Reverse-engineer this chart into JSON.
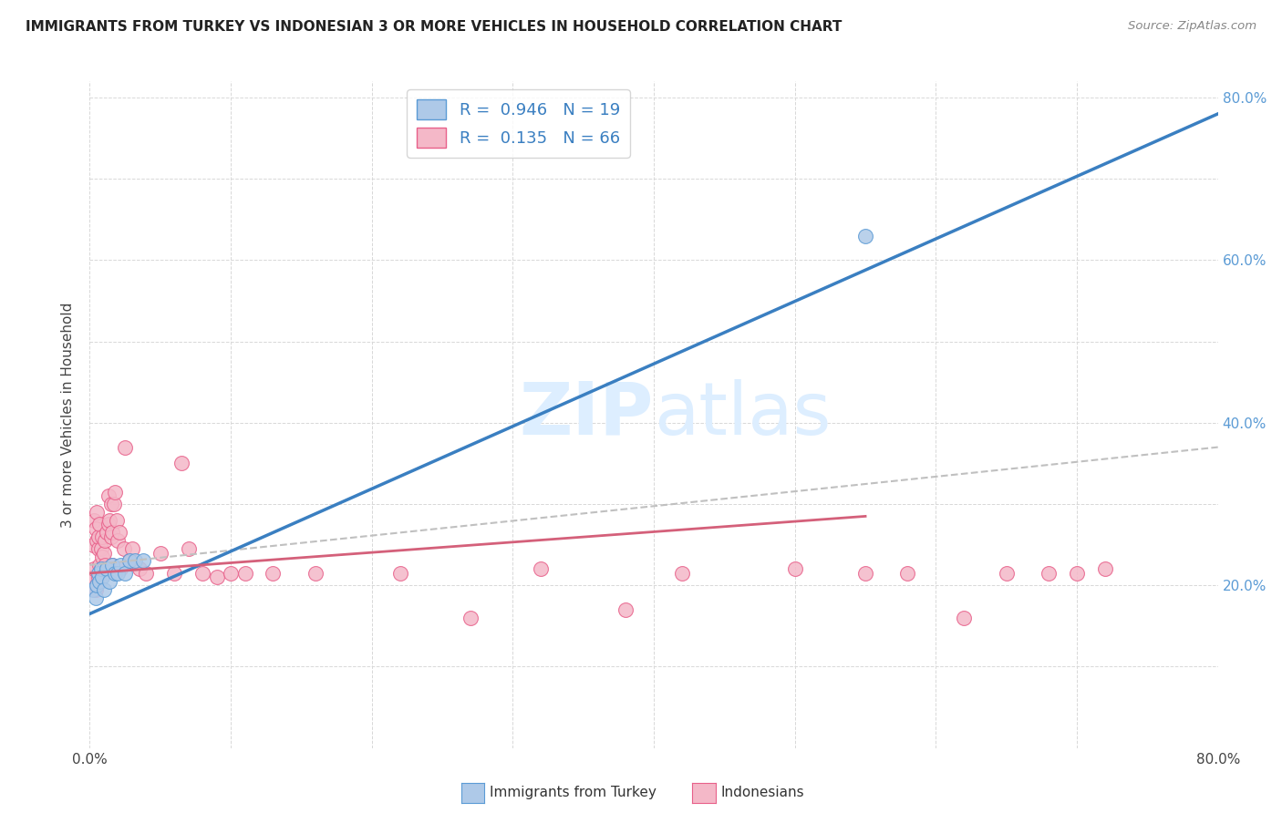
{
  "title": "IMMIGRANTS FROM TURKEY VS INDONESIAN 3 OR MORE VEHICLES IN HOUSEHOLD CORRELATION CHART",
  "source": "Source: ZipAtlas.com",
  "ylabel": "3 or more Vehicles in Household",
  "xlim": [
    0.0,
    0.8
  ],
  "ylim": [
    0.0,
    0.82
  ],
  "blue_R": "0.946",
  "blue_N": "19",
  "pink_R": "0.135",
  "pink_N": "66",
  "blue_scatter_color": "#aec9e8",
  "blue_edge_color": "#5b9bd5",
  "pink_scatter_color": "#f4b8c8",
  "pink_edge_color": "#e8608a",
  "blue_line_color": "#3a7fc1",
  "pink_line_color": "#d4607a",
  "gray_dash_color": "#c0c0c0",
  "watermark_color": "#ddeeff",
  "legend_label_blue": "Immigrants from Turkey",
  "legend_label_pink": "Indonesians",
  "blue_line_x0": 0.0,
  "blue_line_y0": 0.165,
  "blue_line_x1": 0.8,
  "blue_line_y1": 0.78,
  "pink_line_x0": 0.0,
  "pink_line_y0": 0.215,
  "pink_line_x1": 0.55,
  "pink_line_y1": 0.285,
  "gray_line_x0": 0.0,
  "gray_line_y0": 0.225,
  "gray_line_x1": 0.8,
  "gray_line_y1": 0.37,
  "blue_scatter_x": [
    0.002,
    0.004,
    0.005,
    0.006,
    0.007,
    0.008,
    0.009,
    0.01,
    0.012,
    0.014,
    0.016,
    0.018,
    0.02,
    0.022,
    0.025,
    0.028,
    0.032,
    0.038,
    0.55
  ],
  "blue_scatter_y": [
    0.195,
    0.185,
    0.2,
    0.215,
    0.205,
    0.22,
    0.21,
    0.195,
    0.22,
    0.205,
    0.225,
    0.215,
    0.215,
    0.225,
    0.215,
    0.23,
    0.23,
    0.23,
    0.63
  ],
  "pink_scatter_x": [
    0.001,
    0.002,
    0.002,
    0.003,
    0.003,
    0.004,
    0.004,
    0.005,
    0.005,
    0.005,
    0.006,
    0.006,
    0.006,
    0.007,
    0.007,
    0.008,
    0.008,
    0.009,
    0.009,
    0.01,
    0.01,
    0.011,
    0.011,
    0.012,
    0.013,
    0.013,
    0.014,
    0.015,
    0.015,
    0.016,
    0.016,
    0.017,
    0.018,
    0.019,
    0.02,
    0.021,
    0.022,
    0.024,
    0.025,
    0.028,
    0.03,
    0.035,
    0.04,
    0.05,
    0.06,
    0.065,
    0.07,
    0.08,
    0.09,
    0.1,
    0.11,
    0.13,
    0.16,
    0.22,
    0.27,
    0.32,
    0.38,
    0.42,
    0.5,
    0.55,
    0.58,
    0.62,
    0.65,
    0.68,
    0.7,
    0.72
  ],
  "pink_scatter_y": [
    0.205,
    0.21,
    0.25,
    0.22,
    0.28,
    0.195,
    0.27,
    0.2,
    0.255,
    0.29,
    0.21,
    0.245,
    0.26,
    0.225,
    0.275,
    0.22,
    0.245,
    0.235,
    0.26,
    0.215,
    0.24,
    0.225,
    0.255,
    0.265,
    0.275,
    0.31,
    0.28,
    0.26,
    0.3,
    0.225,
    0.265,
    0.3,
    0.315,
    0.28,
    0.255,
    0.265,
    0.22,
    0.245,
    0.37,
    0.23,
    0.245,
    0.22,
    0.215,
    0.24,
    0.215,
    0.35,
    0.245,
    0.215,
    0.21,
    0.215,
    0.215,
    0.215,
    0.215,
    0.215,
    0.16,
    0.22,
    0.17,
    0.215,
    0.22,
    0.215,
    0.215,
    0.16,
    0.215,
    0.215,
    0.215,
    0.22
  ]
}
